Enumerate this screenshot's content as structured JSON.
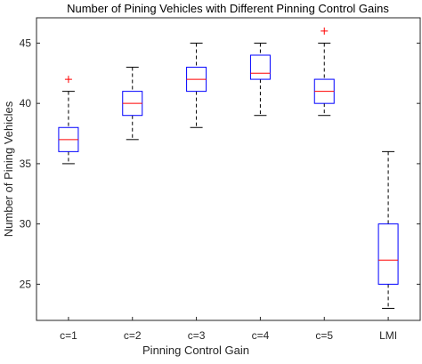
{
  "chart_data": {
    "type": "box",
    "title": "Number of Pining Vehicles with Different Pinning Control Gains",
    "x_label": "Pinning Control Gain",
    "y_label": "Number of Pining Vehicles",
    "categories": [
      "c=1",
      "c=2",
      "c=3",
      "c=4",
      "c=5",
      "LMI"
    ],
    "boxes": [
      {
        "min": 35,
        "q1": 36,
        "median": 37,
        "q3": 38,
        "max": 41,
        "outliers": [
          42
        ]
      },
      {
        "min": 37,
        "q1": 39,
        "median": 40,
        "q3": 41,
        "max": 43,
        "outliers": []
      },
      {
        "min": 38,
        "q1": 41,
        "median": 42,
        "q3": 43,
        "max": 45,
        "outliers": []
      },
      {
        "min": 39,
        "q1": 42,
        "median": 42.5,
        "q3": 44,
        "max": 45,
        "outliers": []
      },
      {
        "min": 39,
        "q1": 40,
        "median": 41,
        "q3": 42,
        "max": 45,
        "outliers": [
          46
        ]
      },
      {
        "min": 23,
        "q1": 25,
        "median": 27,
        "q3": 30,
        "max": 36,
        "outliers": []
      }
    ],
    "box_color": "#0000ff",
    "median_color": "#ff0000",
    "whisker_color": "#000000",
    "outlier_color": "#ff0000",
    "ylim": [
      22,
      47.1
    ],
    "yticks": [
      25,
      30,
      35,
      40,
      45
    ]
  }
}
